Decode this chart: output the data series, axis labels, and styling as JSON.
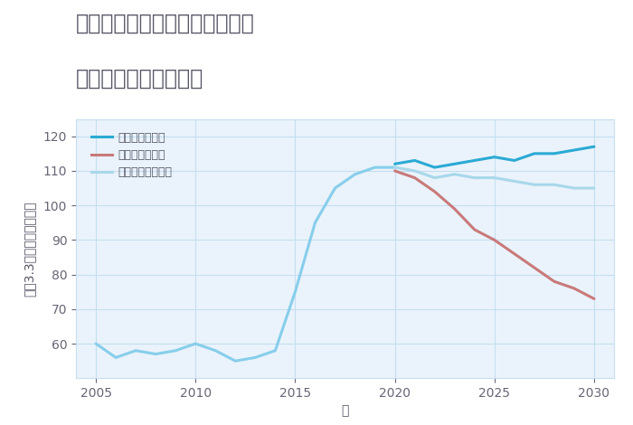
{
  "title_line1": "愛知県名古屋市中村区名楽町の",
  "title_line2": "中古戸建ての価格推移",
  "xlabel": "年",
  "ylabel": "坪（3.3㎡）単価（万円）",
  "ylim": [
    50,
    125
  ],
  "xlim": [
    2004,
    2031
  ],
  "yticks": [
    60,
    70,
    80,
    90,
    100,
    110,
    120
  ],
  "xticks": [
    2005,
    2010,
    2015,
    2020,
    2025,
    2030
  ],
  "fig_bg_color": "#ffffff",
  "plot_bg_color": "#eaf3fb",
  "grid_color": "#c5dff0",
  "years_hist": [
    2005,
    2006,
    2007,
    2008,
    2009,
    2010,
    2011,
    2012,
    2013,
    2014,
    2015,
    2016,
    2017,
    2018,
    2019,
    2020
  ],
  "values_hist": [
    60,
    56,
    58,
    57,
    58,
    60,
    58,
    55,
    56,
    58,
    75,
    95,
    105,
    109,
    111,
    111
  ],
  "years_good": [
    2020,
    2021,
    2022,
    2023,
    2024,
    2025,
    2026,
    2027,
    2028,
    2029,
    2030
  ],
  "values_good": [
    112,
    113,
    111,
    112,
    113,
    114,
    113,
    115,
    115,
    116,
    117
  ],
  "years_bad": [
    2020,
    2021,
    2022,
    2023,
    2024,
    2025,
    2026,
    2027,
    2028,
    2029,
    2030
  ],
  "values_bad": [
    110,
    108,
    104,
    99,
    93,
    90,
    86,
    82,
    78,
    76,
    73
  ],
  "years_normal": [
    2020,
    2021,
    2022,
    2023,
    2024,
    2025,
    2026,
    2027,
    2028,
    2029,
    2030
  ],
  "values_normal": [
    111,
    110,
    108,
    109,
    108,
    108,
    107,
    106,
    106,
    105,
    105
  ],
  "color_hist": "#87ceeb",
  "color_good": "#2baad4",
  "color_bad": "#c97a7a",
  "color_normal": "#a8d8ea",
  "linewidth_hist": 2.2,
  "linewidth_future": 2.2,
  "legend_labels": [
    "グッドシナリオ",
    "バッドシナリオ",
    "ノーマルシナリオ"
  ],
  "legend_colors": [
    "#2baad4",
    "#c97a7a",
    "#a8d8ea"
  ],
  "title_fontsize": 17,
  "axis_fontsize": 10,
  "tick_fontsize": 10,
  "text_color": "#555566",
  "tick_color": "#666677"
}
